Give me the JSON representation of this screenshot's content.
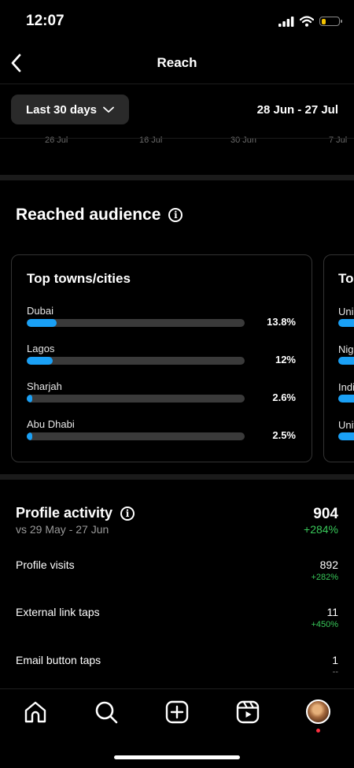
{
  "status_bar": {
    "time": "12:07"
  },
  "header": {
    "title": "Reach"
  },
  "filter": {
    "period": "Last 30 days",
    "date_range": "28 Jun - 27 Jul"
  },
  "chart_ticks": [
    "26 Jul",
    "16 Jul",
    "30 Jun",
    "7 Jul"
  ],
  "reached_audience": {
    "title": "Reached audience",
    "cities_card": {
      "title": "Top towns/cities",
      "items": [
        {
          "name": "Dubai",
          "percent": "13.8%",
          "fraction": 0.138
        },
        {
          "name": "Lagos",
          "percent": "12%",
          "fraction": 0.12
        },
        {
          "name": "Sharjah",
          "percent": "2.6%",
          "fraction": 0.026
        },
        {
          "name": "Abu Dhabi",
          "percent": "2.5%",
          "fraction": 0.025
        }
      ]
    },
    "countries_card": {
      "title": "To",
      "items": [
        "Uni",
        "Nig",
        "Indi",
        "Unit"
      ]
    }
  },
  "profile_activity": {
    "title": "Profile activity",
    "compare": "vs 29 May - 27 Jun",
    "total": "904",
    "change": "+284%",
    "rows": [
      {
        "label": "Profile visits",
        "value": "892",
        "change": "+282%"
      },
      {
        "label": "External link taps",
        "value": "11",
        "change": "+450%"
      },
      {
        "label": "Email button taps",
        "value": "1",
        "change": "--"
      }
    ]
  },
  "colors": {
    "accent": "#1aa0f5",
    "positive": "#38c759",
    "battery": "#f5c400"
  },
  "nav_icons": [
    "home-icon",
    "search-icon",
    "create-icon",
    "reels-icon",
    "profile-avatar"
  ]
}
